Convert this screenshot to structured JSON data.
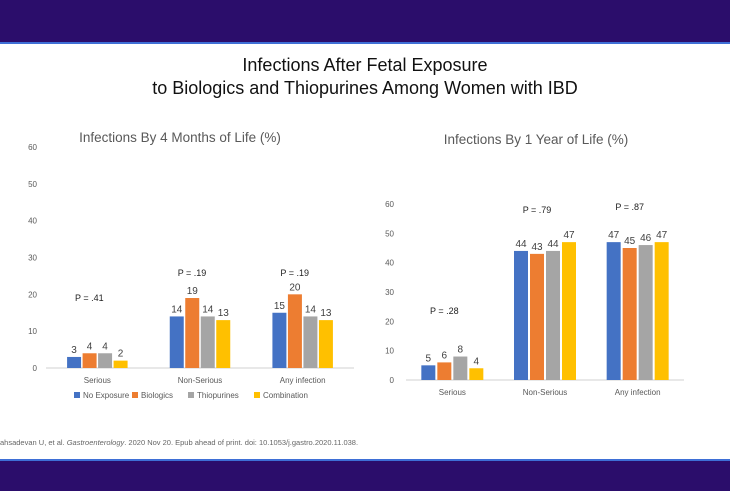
{
  "slide": {
    "title_line1": "Infections After Fetal Exposure",
    "title_line2": "to Biologics and Thiopurines Among Women with IBD",
    "citation_prefix": "ahsadevan U, et al. ",
    "citation_journal": "Gastroenterology",
    "citation_suffix": ". 2020 Nov 20. Epub ahead of print. doi: 10.1053/j.gastro.2020.11.038."
  },
  "colors": {
    "band": "#2b0d6b",
    "band_line": "#3e6fd6",
    "No Exposure": "#4472c4",
    "Biologics": "#ed7d31",
    "Thiopurines": "#a5a5a5",
    "Combination": "#ffc000"
  },
  "chart_data": [
    {
      "type": "bar",
      "title": "Infections By 4 Months of Life (%)",
      "xlabel": "",
      "ylabel": "",
      "ylim": [
        0,
        60
      ],
      "yticks": [
        0,
        10,
        20,
        30,
        40,
        50,
        60
      ],
      "categories": [
        "Serious",
        "Non-Serious",
        "Any infection"
      ],
      "series": [
        {
          "name": "No Exposure",
          "values": [
            3,
            14,
            15
          ]
        },
        {
          "name": "Biologics",
          "values": [
            4,
            19,
            20
          ]
        },
        {
          "name": "Thiopurines",
          "values": [
            4,
            14,
            14
          ]
        },
        {
          "name": "Combination",
          "values": [
            2,
            13,
            13
          ]
        }
      ],
      "p_values": [
        "P = .41",
        "P = .19",
        "P = .19"
      ],
      "legend": "bottom",
      "grid": false
    },
    {
      "type": "bar",
      "title": "Infections By 1 Year of Life (%)",
      "xlabel": "",
      "ylabel": "",
      "ylim": [
        0,
        60
      ],
      "yticks": [
        0,
        10,
        20,
        30,
        40,
        50,
        60
      ],
      "categories": [
        "Serious",
        "Non-Serious",
        "Any infection"
      ],
      "series": [
        {
          "name": "No Exposure",
          "values": [
            5,
            44,
            47
          ]
        },
        {
          "name": "Biologics",
          "values": [
            6,
            43,
            45
          ]
        },
        {
          "name": "Thiopurines",
          "values": [
            8,
            44,
            46
          ]
        },
        {
          "name": "Combination",
          "values": [
            4,
            47,
            47
          ]
        }
      ],
      "p_values": [
        "P = .28",
        "P = .79",
        "P = .87"
      ],
      "legend": "none",
      "grid": false
    }
  ]
}
